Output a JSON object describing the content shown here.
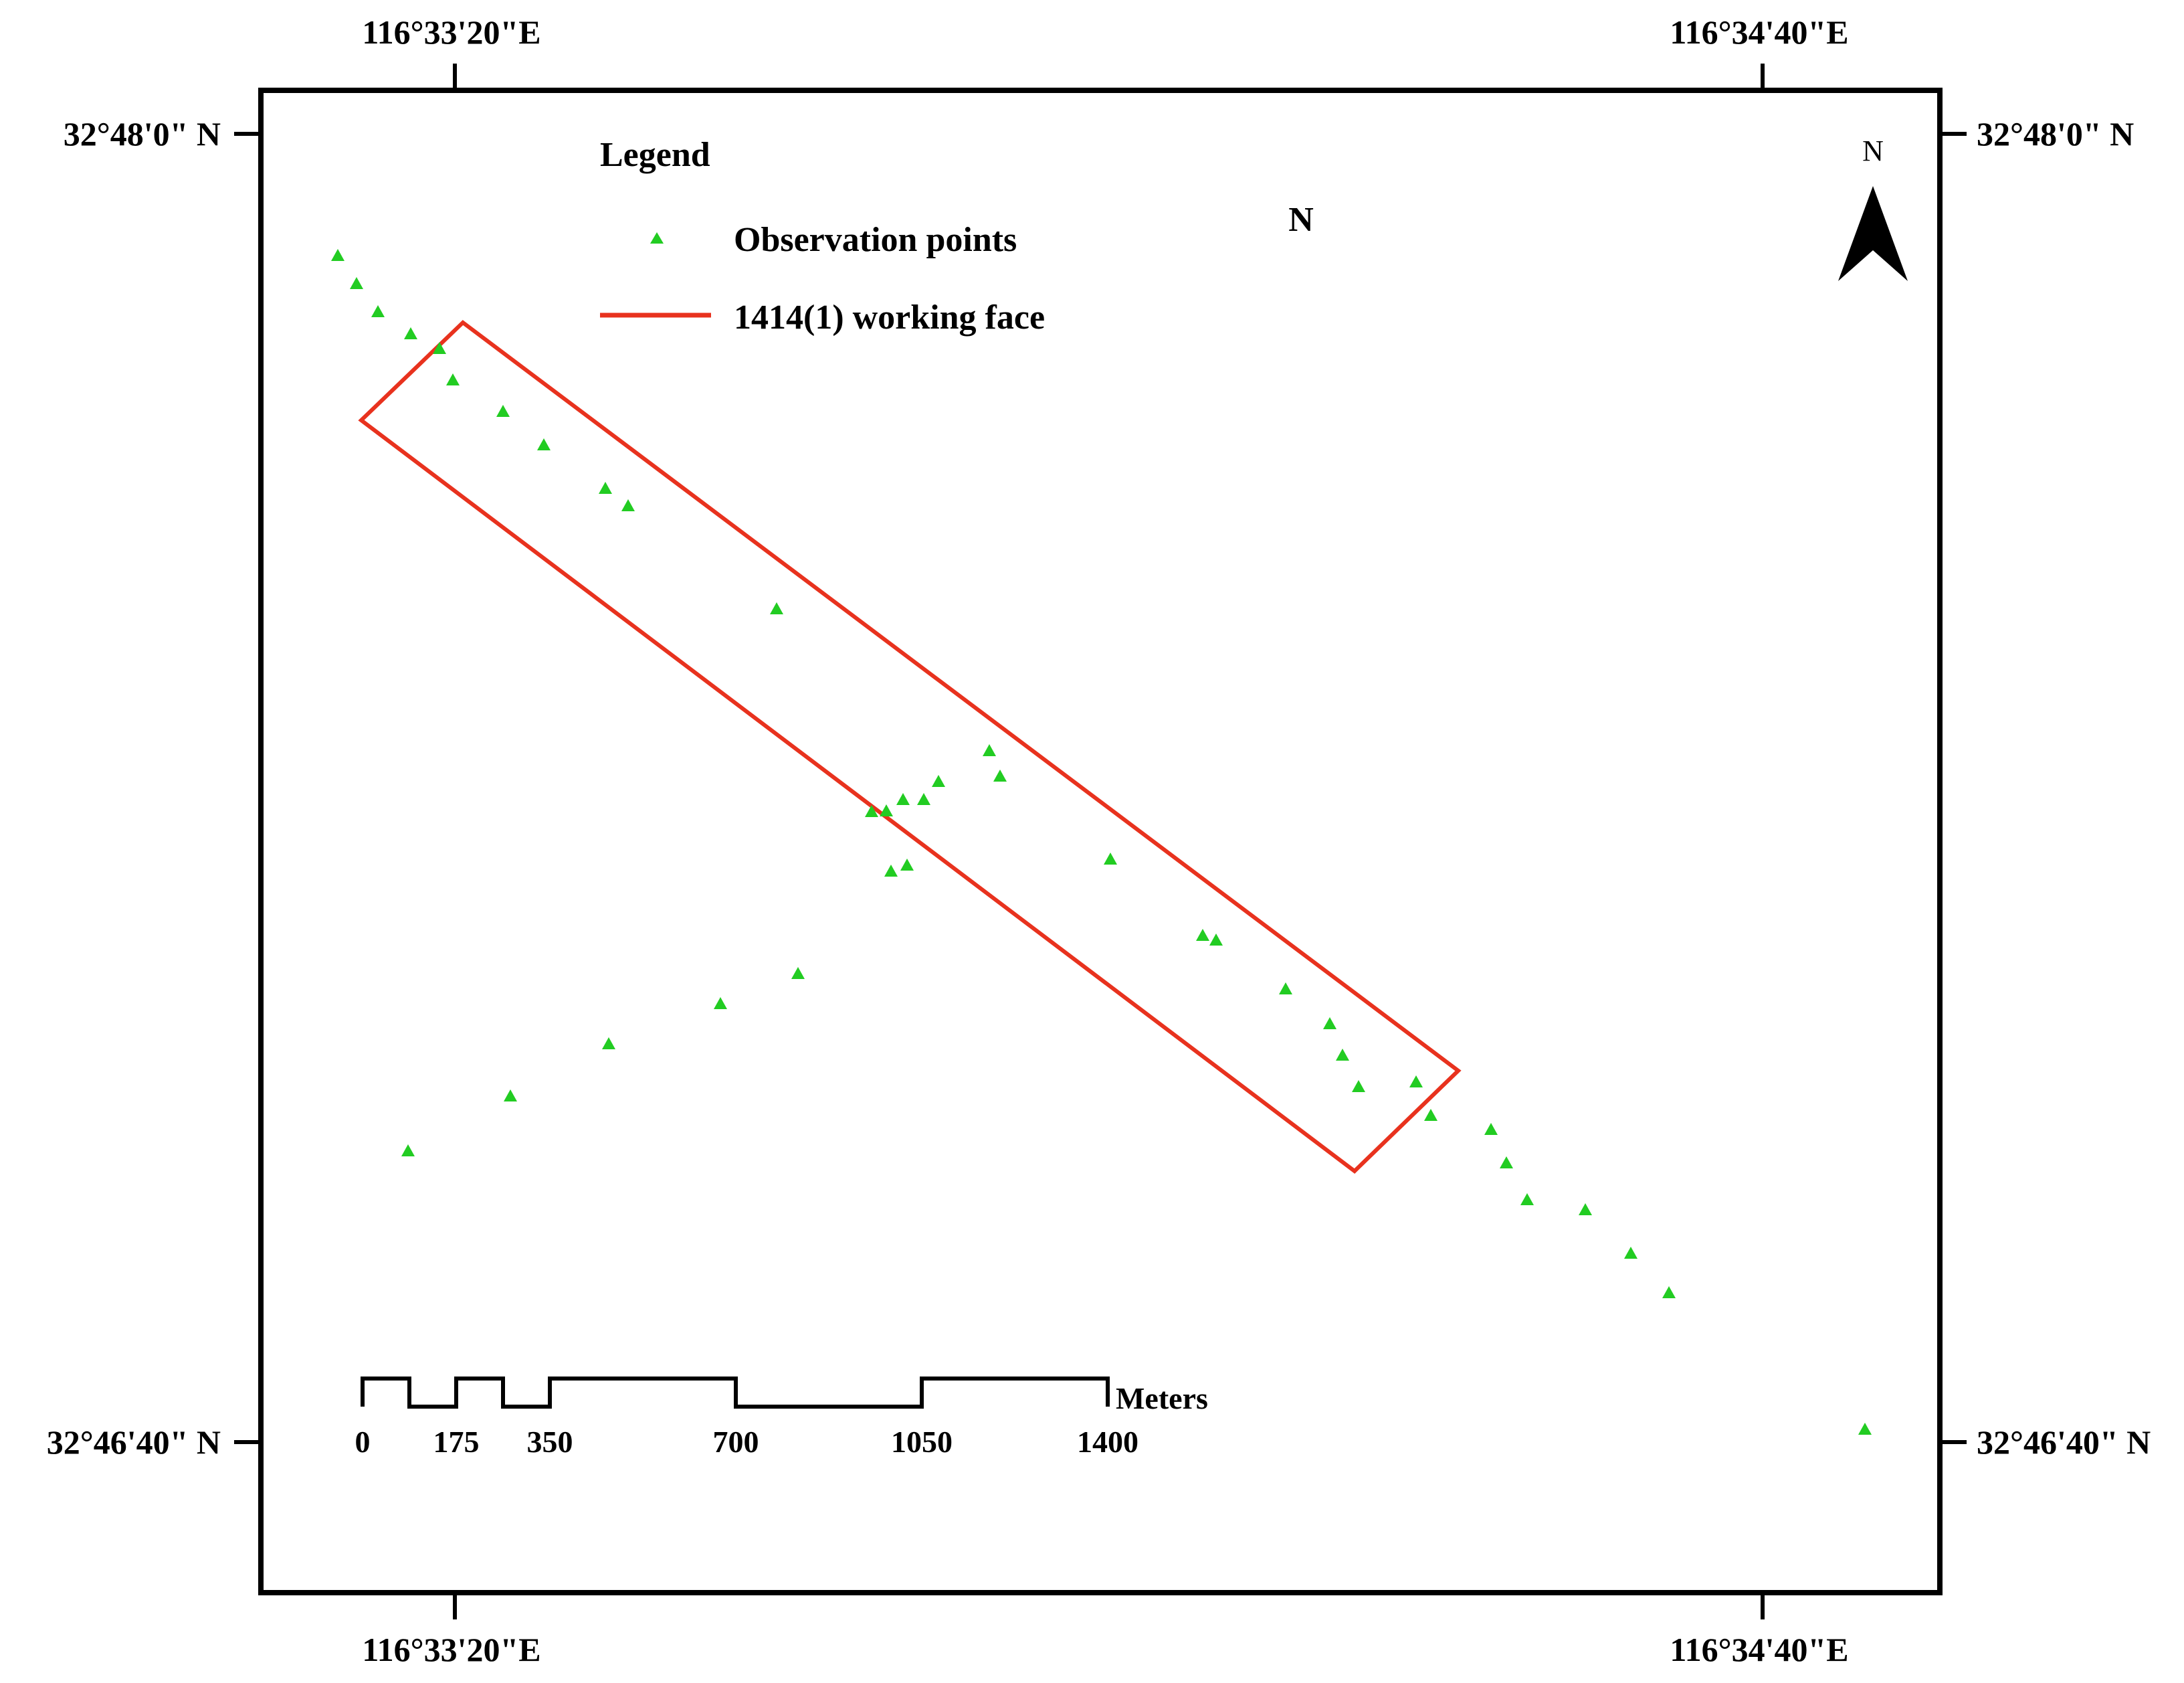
{
  "map": {
    "north_label": "N",
    "north_arrow_label": "N",
    "frame_color": "#000000",
    "legend": {
      "title": "Legend",
      "items": [
        {
          "label": "Observation points",
          "symbol": "green-triangle-icon",
          "color": "#22cc22"
        },
        {
          "label": "1414(1) working face",
          "symbol": "red-line-icon",
          "color": "#e8321e"
        }
      ]
    },
    "graticule": {
      "top_labels": [
        "116°33'20\"E",
        "116°34'40\"E"
      ],
      "bottom_labels": [
        "116°33'20\"E",
        "116°34'40\"E"
      ],
      "left_labels": [
        "32°48'0\" N",
        "32°46'40\" N"
      ],
      "right_labels": [
        "32°48'0\" N",
        "32°46'40\" N"
      ]
    },
    "scale_bar": {
      "unit": "Meters",
      "ticks": [
        "0",
        "175",
        "350",
        "700",
        "1050",
        "1400"
      ]
    }
  }
}
